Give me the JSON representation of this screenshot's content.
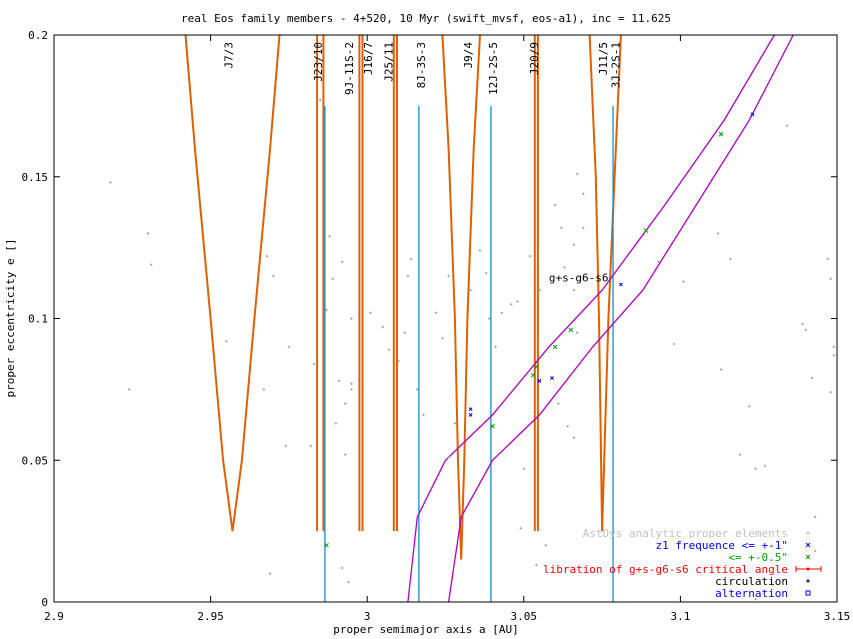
{
  "chart_data": {
    "type": "scatter",
    "title": "real Eos family members - 4+520, 10 Myr (swift_mvsf, eos-a1), inc = 11.625",
    "xlabel": "proper semimajor axis a [AU]",
    "ylabel": "proper eccentricity e []",
    "xlim": [
      2.9,
      3.15
    ],
    "ylim": [
      0,
      0.2
    ],
    "xticks": [
      2.9,
      2.95,
      3.0,
      3.05,
      3.1,
      3.15
    ],
    "xtick_labels": [
      "2.9",
      "2.95",
      "3",
      "3.05",
      "3.1",
      "3.15"
    ],
    "yticks": [
      0,
      0.05,
      0.1,
      0.15,
      0.2
    ],
    "ytick_labels": [
      "0",
      "0.05",
      "0.1",
      "0.15",
      "0.2"
    ],
    "grid": false,
    "legend_position": "bottom-right",
    "colors": {
      "axis": "#000000",
      "background_points": "#a0a0a0",
      "z1_le_1": "#0000ff",
      "z1_le_05": "#00a000",
      "libration": "#ff0000",
      "circulation": "#000000",
      "alternation": "#0000ff",
      "resonance_border": "#e06000",
      "three_body_line": "#1090d0",
      "secular_border": "#b000c0"
    },
    "legend": [
      {
        "label": "AstDys analytic proper elements",
        "color": "#c0c0c0",
        "marker": "+"
      },
      {
        "label": "z1 frequence <= +-1\"",
        "color": "#0000ff",
        "marker": "x"
      },
      {
        "label": "<= +-0.5\"",
        "color": "#00a000",
        "marker": "x"
      },
      {
        "label": "libration of g+s-g6-s6 critical angle",
        "color": "#ff0000",
        "marker": "line"
      },
      {
        "label": "circulation",
        "color": "#000000",
        "marker": "+"
      },
      {
        "label": "alternation",
        "color": "#0000ff",
        "marker": "square"
      }
    ],
    "resonance_labels": [
      "J7/3",
      "J23/10",
      "9J-11S-2",
      "J16/7",
      "J25/11",
      "8J-3S-3",
      "J9/4",
      "12J-2S-5",
      "J20/9",
      "J11/5",
      "3J-2S-1"
    ],
    "three_body_lines": [
      {
        "name": "9J-11S-2",
        "a": 2.9865,
        "e_top": 0.175
      },
      {
        "name": "8J-3S-3",
        "a": 3.0165,
        "e_top": 0.175
      },
      {
        "name": "12J-2S-5",
        "a": 3.0395,
        "e_top": 0.175
      },
      {
        "name": "3J-2S-1",
        "a": 3.0785,
        "e_top": 0.175
      },
      {
        "name": "J23/10",
        "a": 2.9945,
        "e_top": 0.175
      }
    ],
    "mmr_borders": [
      {
        "name": "J7/3",
        "center": 2.957,
        "e_min": 0.025,
        "left": [
          [
            2.942,
            0.2
          ],
          [
            2.945,
            0.16
          ],
          [
            2.95,
            0.1
          ],
          [
            2.954,
            0.05
          ],
          [
            2.957,
            0.025
          ]
        ],
        "right": [
          [
            2.972,
            0.2
          ],
          [
            2.969,
            0.16
          ],
          [
            2.964,
            0.1
          ],
          [
            2.96,
            0.05
          ],
          [
            2.957,
            0.025
          ]
        ]
      },
      {
        "name": "J23/10",
        "center": 2.985,
        "e_min": 0.025,
        "left": [
          [
            2.984,
            0.2
          ],
          [
            2.984,
            0.025
          ]
        ],
        "right": [
          [
            2.986,
            0.2
          ],
          [
            2.986,
            0.025
          ]
        ]
      },
      {
        "name": "J16/7",
        "center": 2.998,
        "e_min": 0.025,
        "left": [
          [
            2.9975,
            0.2
          ],
          [
            2.9975,
            0.025
          ]
        ],
        "right": [
          [
            2.9985,
            0.2
          ],
          [
            2.9985,
            0.025
          ]
        ]
      },
      {
        "name": "J25/11",
        "center": 3.009,
        "e_min": 0.025,
        "left": [
          [
            3.0085,
            0.2
          ],
          [
            3.0085,
            0.025
          ]
        ],
        "right": [
          [
            3.0095,
            0.2
          ],
          [
            3.0095,
            0.025
          ]
        ]
      },
      {
        "name": "J9/4",
        "center": 3.03,
        "e_min": 0.015,
        "left": [
          [
            3.024,
            0.2
          ],
          [
            3.026,
            0.16
          ],
          [
            3.028,
            0.1
          ],
          [
            3.029,
            0.05
          ],
          [
            3.03,
            0.015
          ]
        ],
        "right": [
          [
            3.036,
            0.2
          ],
          [
            3.034,
            0.16
          ],
          [
            3.032,
            0.1
          ],
          [
            3.031,
            0.05
          ],
          [
            3.03,
            0.015
          ]
        ]
      },
      {
        "name": "J20/9",
        "center": 3.054,
        "e_min": 0.025,
        "left": [
          [
            3.0535,
            0.2
          ],
          [
            3.0535,
            0.025
          ]
        ],
        "right": [
          [
            3.0545,
            0.2
          ],
          [
            3.0545,
            0.025
          ]
        ]
      },
      {
        "name": "J11/5",
        "center": 3.075,
        "e_min": 0.025,
        "left": [
          [
            3.071,
            0.2
          ],
          [
            3.073,
            0.15
          ],
          [
            3.074,
            0.1
          ],
          [
            3.075,
            0.025
          ]
        ],
        "right": [
          [
            3.081,
            0.2
          ],
          [
            3.079,
            0.15
          ],
          [
            3.077,
            0.1
          ],
          [
            3.075,
            0.025
          ]
        ]
      }
    ],
    "secular_curves": [
      {
        "name": "g+s-g6-s6",
        "points": [
          [
            3.013,
            0.0
          ],
          [
            3.016,
            0.03
          ],
          [
            3.025,
            0.05
          ],
          [
            3.04,
            0.066
          ],
          [
            3.058,
            0.09
          ],
          [
            3.075,
            0.11
          ],
          [
            3.095,
            0.14
          ],
          [
            3.114,
            0.17
          ],
          [
            3.13,
            0.2
          ]
        ]
      },
      {
        "name": "g+s-g6-s6",
        "points": [
          [
            3.026,
            0.0
          ],
          [
            3.03,
            0.03
          ],
          [
            3.04,
            0.05
          ],
          [
            3.055,
            0.066
          ],
          [
            3.072,
            0.09
          ],
          [
            3.088,
            0.11
          ],
          [
            3.105,
            0.14
          ],
          [
            3.122,
            0.17
          ],
          [
            3.136,
            0.2
          ]
        ]
      }
    ],
    "secular_label": {
      "text": "g+s-g6-s6",
      "a": 3.058,
      "e": 0.113
    },
    "series": [
      {
        "name": "AstDys analytic proper elements",
        "marker": "+",
        "points": [
          [
            2.918,
            0.148
          ],
          [
            2.93,
            0.13
          ],
          [
            2.931,
            0.119
          ],
          [
            2.924,
            0.075
          ],
          [
            2.955,
            0.092
          ],
          [
            2.968,
            0.122
          ],
          [
            2.97,
            0.115
          ],
          [
            2.967,
            0.075
          ],
          [
            2.975,
            0.09
          ],
          [
            2.983,
            0.084
          ],
          [
            2.982,
            0.055
          ],
          [
            2.974,
            0.055
          ],
          [
            2.969,
            0.01
          ],
          [
            2.985,
            0.177
          ],
          [
            2.988,
            0.129
          ],
          [
            2.992,
            0.12
          ],
          [
            2.989,
            0.114
          ],
          [
            2.987,
            0.103
          ],
          [
            2.995,
            0.1
          ],
          [
            2.991,
            0.078
          ],
          [
            2.995,
            0.077
          ],
          [
            2.995,
            0.075
          ],
          [
            2.993,
            0.07
          ],
          [
            2.99,
            0.063
          ],
          [
            2.993,
            0.052
          ],
          [
            2.992,
            0.012
          ],
          [
            2.994,
            0.007
          ],
          [
            3.001,
            0.102
          ],
          [
            3.005,
            0.097
          ],
          [
            3.007,
            0.089
          ],
          [
            3.013,
            0.115
          ],
          [
            3.014,
            0.121
          ],
          [
            3.012,
            0.095
          ],
          [
            3.01,
            0.085
          ],
          [
            3.016,
            0.075
          ],
          [
            3.018,
            0.066
          ],
          [
            3.022,
            0.102
          ],
          [
            3.024,
            0.093
          ],
          [
            3.026,
            0.115
          ],
          [
            3.028,
            0.063
          ],
          [
            3.026,
            0.051
          ],
          [
            3.033,
            0.11
          ],
          [
            3.036,
            0.124
          ],
          [
            3.038,
            0.116
          ],
          [
            3.039,
            0.1
          ],
          [
            3.043,
            0.102
          ],
          [
            3.041,
            0.09
          ],
          [
            3.046,
            0.105
          ],
          [
            3.048,
            0.106
          ],
          [
            3.052,
            0.122
          ],
          [
            3.055,
            0.11
          ],
          [
            3.06,
            0.14
          ],
          [
            3.062,
            0.132
          ],
          [
            3.063,
            0.118
          ],
          [
            3.066,
            0.126
          ],
          [
            3.069,
            0.132
          ],
          [
            3.066,
            0.11
          ],
          [
            3.067,
            0.095
          ],
          [
            3.061,
            0.07
          ],
          [
            3.064,
            0.062
          ],
          [
            3.066,
            0.058
          ],
          [
            3.05,
            0.047
          ],
          [
            3.049,
            0.026
          ],
          [
            3.057,
            0.02
          ],
          [
            3.054,
            0.013
          ],
          [
            3.067,
            0.151
          ],
          [
            3.069,
            0.144
          ],
          [
            3.093,
            0.12
          ],
          [
            3.098,
            0.091
          ],
          [
            3.101,
            0.113
          ],
          [
            3.112,
            0.13
          ],
          [
            3.116,
            0.121
          ],
          [
            3.113,
            0.082
          ],
          [
            3.122,
            0.069
          ],
          [
            3.119,
            0.052
          ],
          [
            3.124,
            0.047
          ],
          [
            3.127,
            0.048
          ],
          [
            3.134,
            0.168
          ],
          [
            3.139,
            0.098
          ],
          [
            3.14,
            0.096
          ],
          [
            3.142,
            0.079
          ],
          [
            3.147,
            0.121
          ],
          [
            3.148,
            0.114
          ],
          [
            3.149,
            0.09
          ],
          [
            3.149,
            0.087
          ],
          [
            3.148,
            0.074
          ],
          [
            3.143,
            0.03
          ],
          [
            3.143,
            0.018
          ],
          [
            3.124,
            0.001
          ]
        ]
      },
      {
        "name": "z1 frequence <= +-1\"",
        "marker": "x",
        "points": [
          [
            3.033,
            0.068
          ],
          [
            3.033,
            0.066
          ],
          [
            3.055,
            0.078
          ],
          [
            3.059,
            0.079
          ],
          [
            3.081,
            0.112
          ],
          [
            3.123,
            0.172
          ]
        ]
      },
      {
        "name": "<= +-0.5\"",
        "marker": "x",
        "points": [
          [
            2.987,
            0.02
          ],
          [
            3.04,
            0.062
          ],
          [
            3.053,
            0.08
          ],
          [
            3.054,
            0.083
          ],
          [
            3.06,
            0.09
          ],
          [
            3.065,
            0.096
          ],
          [
            3.089,
            0.131
          ],
          [
            3.113,
            0.165
          ]
        ]
      }
    ]
  }
}
